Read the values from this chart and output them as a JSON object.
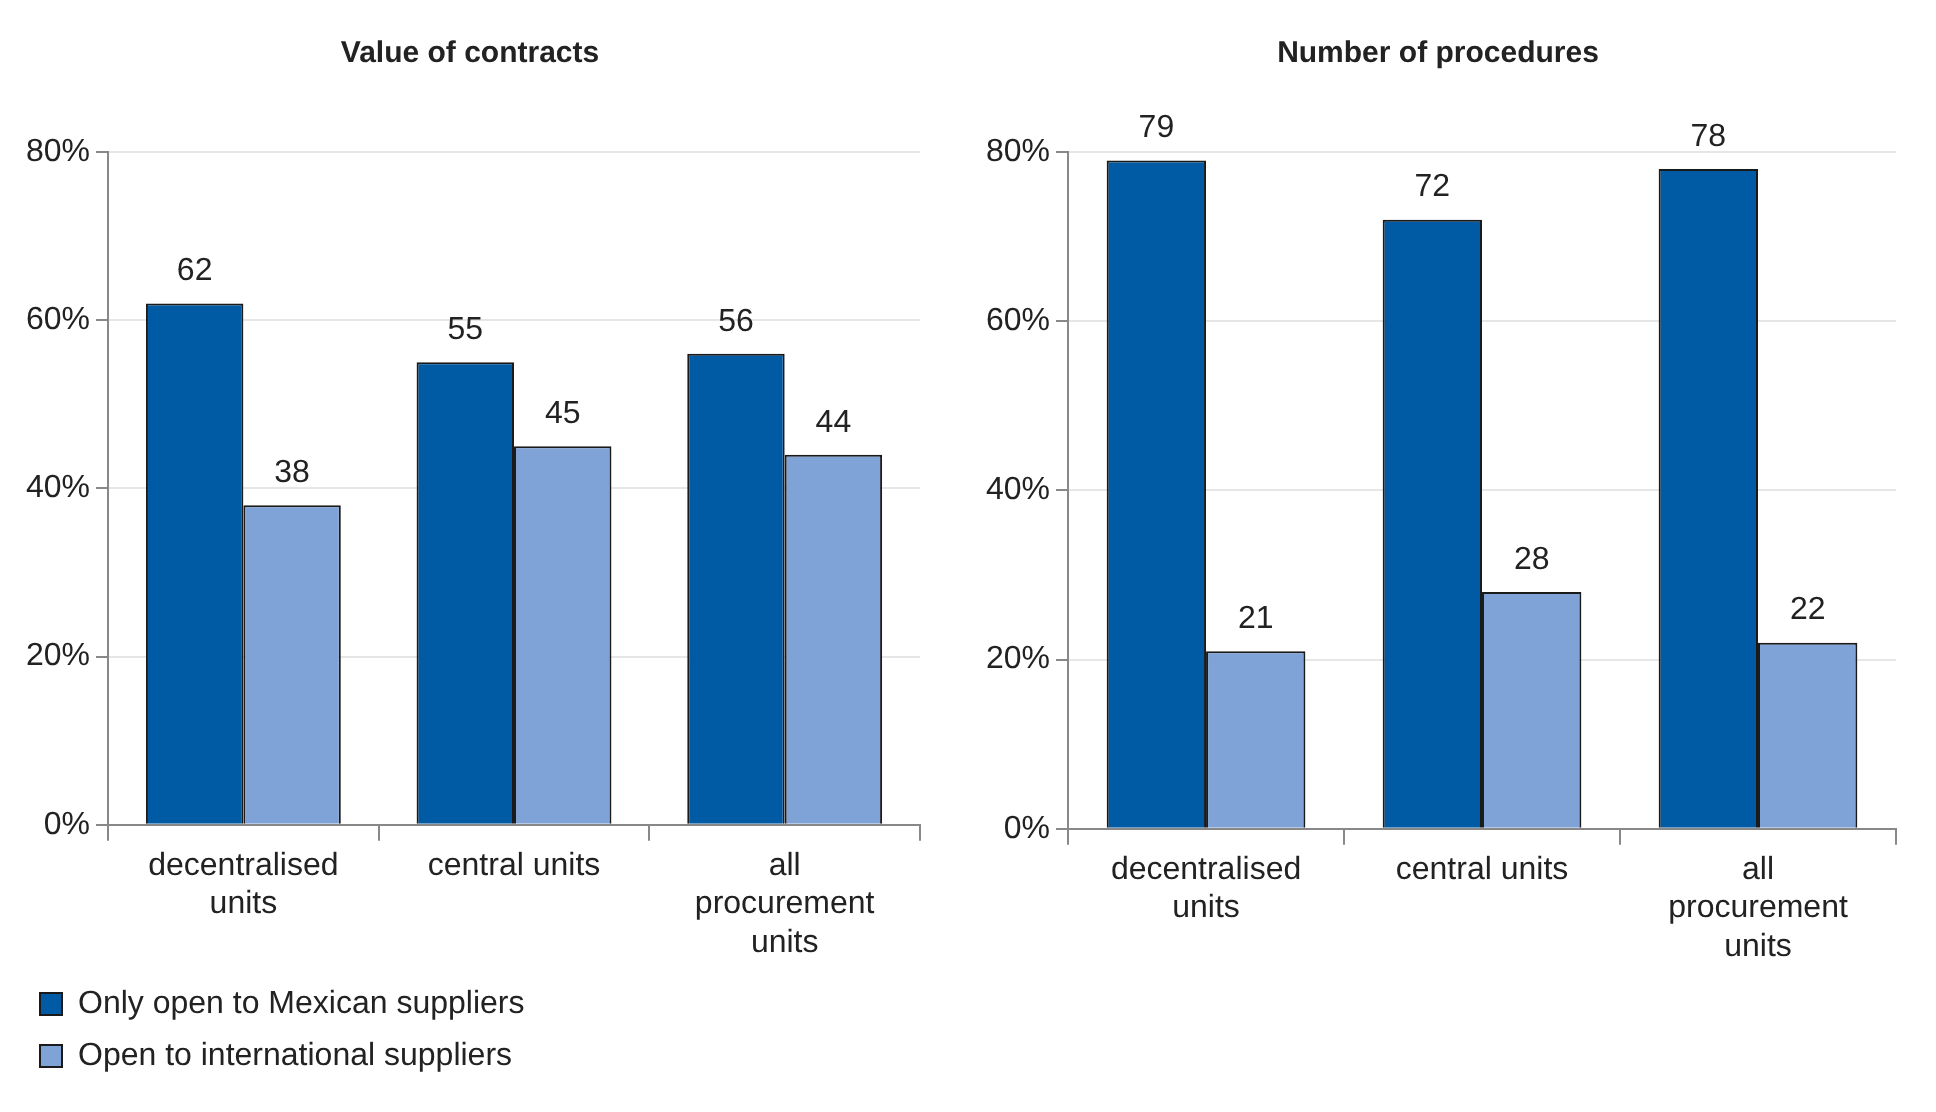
{
  "chart_data": [
    {
      "type": "bar",
      "title": "Value of contracts",
      "categories": [
        "decentralised units",
        "central units",
        "all procurement units"
      ],
      "series": [
        {
          "name": "Only open to Mexican suppliers",
          "color": "#005aa4",
          "values": [
            62,
            55,
            56
          ]
        },
        {
          "name": "Open to international suppliers",
          "color": "#7fa3d7",
          "values": [
            38,
            45,
            44
          ]
        }
      ],
      "ylim": [
        0,
        80
      ],
      "yticks": [
        {
          "value": 0,
          "label": "0%"
        },
        {
          "value": 20,
          "label": "20%"
        },
        {
          "value": 40,
          "label": "40%"
        },
        {
          "value": 60,
          "label": "60%"
        },
        {
          "value": 80,
          "label": "80%"
        }
      ],
      "grid": "y",
      "data_labels": true,
      "legend": "bottom"
    },
    {
      "type": "bar",
      "title": "Number of procedures",
      "categories": [
        "decentralised units",
        "central units",
        "all procurement units"
      ],
      "series": [
        {
          "color": "#005aa4",
          "values": [
            79,
            72,
            78
          ]
        },
        {
          "color": "#7fa3d7",
          "values": [
            21,
            28,
            22
          ]
        }
      ],
      "ylim": [
        0,
        80
      ],
      "yticks": [
        {
          "value": 0,
          "label": "0%"
        },
        {
          "value": 20,
          "label": "20%"
        },
        {
          "value": 40,
          "label": "40%"
        },
        {
          "value": 60,
          "label": "60%"
        },
        {
          "value": 80,
          "label": "80%"
        }
      ],
      "grid": "y",
      "data_labels": true
    }
  ]
}
